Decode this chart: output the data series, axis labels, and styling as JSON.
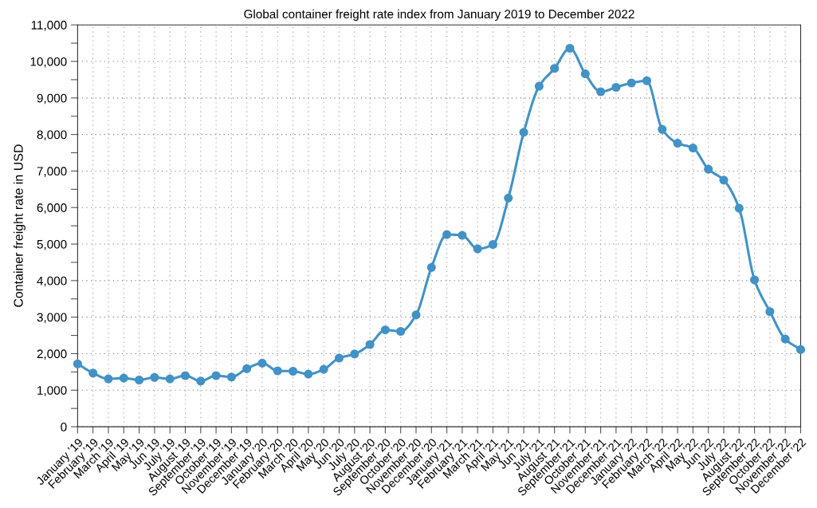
{
  "chart_data": {
    "type": "line",
    "title": "Global container freight rate index from January 2019 to December 2022",
    "ylabel": "Container freight rate in USD",
    "categories": [
      "January ’19",
      "February ’19",
      "March ’19",
      "April ’19",
      "May ’19",
      "Jun ’19",
      "July ’19",
      "August ’19",
      "September ’19",
      "October ’19",
      "November ’19",
      "December ’19",
      "January ’20",
      "February ’20",
      "March ’20",
      "April ’20",
      "May ’20",
      "Jun ’20",
      "July ’20",
      "August ’20",
      "September ’20",
      "October ’20",
      "November ’20",
      "December ’20",
      "January ’21",
      "February ’21",
      "March ’21",
      "April ’21",
      "May ’21",
      "Jun ’21",
      "July ’21",
      "August ’21",
      "September ’21",
      "October ’21",
      "November ’21",
      "December ’21",
      "January ’22",
      "February ’22",
      "March ’22",
      "April ’22",
      "May ’22",
      "Jun ’22",
      "July ’22",
      "August ’22",
      "September ’22",
      "October ’22",
      "November ’22",
      "December ’22"
    ],
    "series": [
      {
        "color": "#4292c6",
        "values": [
          1720,
          1470,
          1310,
          1330,
          1280,
          1350,
          1310,
          1400,
          1250,
          1400,
          1360,
          1590,
          1740,
          1530,
          1520,
          1440,
          1570,
          1880,
          1990,
          2250,
          2650,
          2610,
          3060,
          4360,
          5260,
          5240,
          4870,
          4990,
          6260,
          8060,
          9320,
          9810,
          10360,
          9660,
          9170,
          9290,
          9410,
          9470,
          8140,
          7760,
          7630,
          7050,
          6750,
          5980,
          4020,
          3150,
          2400,
          2110
        ]
      }
    ],
    "ylim": [
      0,
      11000
    ],
    "yticks": [
      0,
      {
        "value": 500,
        "label": null
      },
      {
        "value": 1000,
        "label": "1,000"
      },
      {
        "value": 1500,
        "label": null
      },
      {
        "value": 2000,
        "label": "2,000"
      },
      {
        "value": 2500,
        "label": null
      },
      {
        "value": 3000,
        "label": "3,000"
      },
      {
        "value": 3500,
        "label": null
      },
      {
        "value": 4000,
        "label": "4,000"
      },
      {
        "value": 4500,
        "label": null
      },
      {
        "value": 5000,
        "label": "5,000"
      },
      {
        "value": 5500,
        "label": null
      },
      {
        "value": 6000,
        "label": "6,000"
      },
      {
        "value": 6500,
        "label": null
      },
      {
        "value": 7000,
        "label": "7,000"
      },
      {
        "value": 7500,
        "label": null
      },
      {
        "value": 8000,
        "label": "8,000"
      },
      {
        "value": 8500,
        "label": null
      },
      {
        "value": 9000,
        "label": "9,000"
      },
      {
        "value": 9500,
        "label": null
      },
      {
        "value": 10000,
        "label": "10,000"
      },
      {
        "value": 10500,
        "label": null
      },
      {
        "value": 11000,
        "label": "11,000"
      }
    ],
    "grid": true,
    "marker": "circle",
    "line_style": "solid"
  }
}
